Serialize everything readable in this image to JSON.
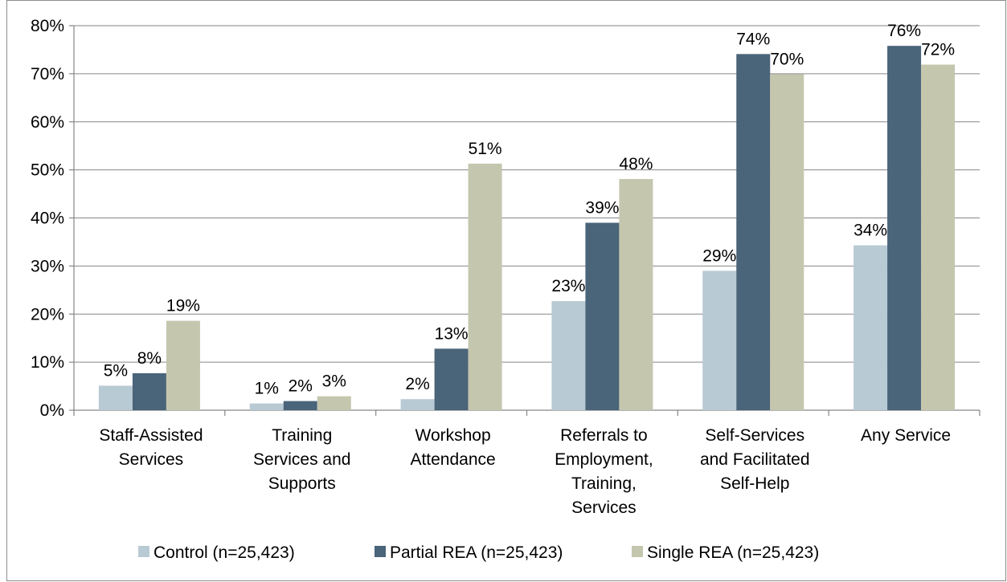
{
  "chart_data": {
    "type": "bar",
    "categories": [
      "Staff-Assisted\nServices",
      "Training\nServices and\nSupports",
      "Workshop\nAttendance",
      "Referrals to\nEmployment,\nTraining,\nServices",
      "Self-Services\nand Facilitated\nSelf-Help",
      "Any Service"
    ],
    "series": [
      {
        "name": "Control (n=25,423)",
        "color": "#b8cad4",
        "values": [
          5.1,
          1.4,
          2.3,
          22.7,
          29.0,
          34.3
        ],
        "value_labels": [
          "5%",
          "1%",
          "2%",
          "23%",
          "29%",
          "34%"
        ]
      },
      {
        "name": "Partial REA (n=25,423)",
        "color": "#4a6479",
        "values": [
          7.7,
          1.9,
          12.8,
          39.0,
          74.1,
          75.8
        ],
        "value_labels": [
          "8%",
          "2%",
          "13%",
          "39%",
          "74%",
          "76%"
        ]
      },
      {
        "name": "Single REA (n=25,423)",
        "color": "#c4c6ae",
        "values": [
          18.6,
          2.9,
          51.3,
          48.1,
          69.9,
          71.9
        ],
        "value_labels": [
          "19%",
          "3%",
          "51%",
          "48%",
          "70%",
          "72%"
        ]
      }
    ],
    "ylim": [
      0,
      80
    ],
    "yticks": [
      {
        "value": 0,
        "label": "0%"
      },
      {
        "value": 10,
        "label": "10%"
      },
      {
        "value": 20,
        "label": "20%"
      },
      {
        "value": 30,
        "label": "30%"
      },
      {
        "value": 40,
        "label": "40%"
      },
      {
        "value": 50,
        "label": "50%"
      },
      {
        "value": 60,
        "label": "60%"
      },
      {
        "value": 70,
        "label": "70%"
      },
      {
        "value": 80,
        "label": "80%"
      }
    ],
    "grid": true,
    "legend": "bottom"
  }
}
